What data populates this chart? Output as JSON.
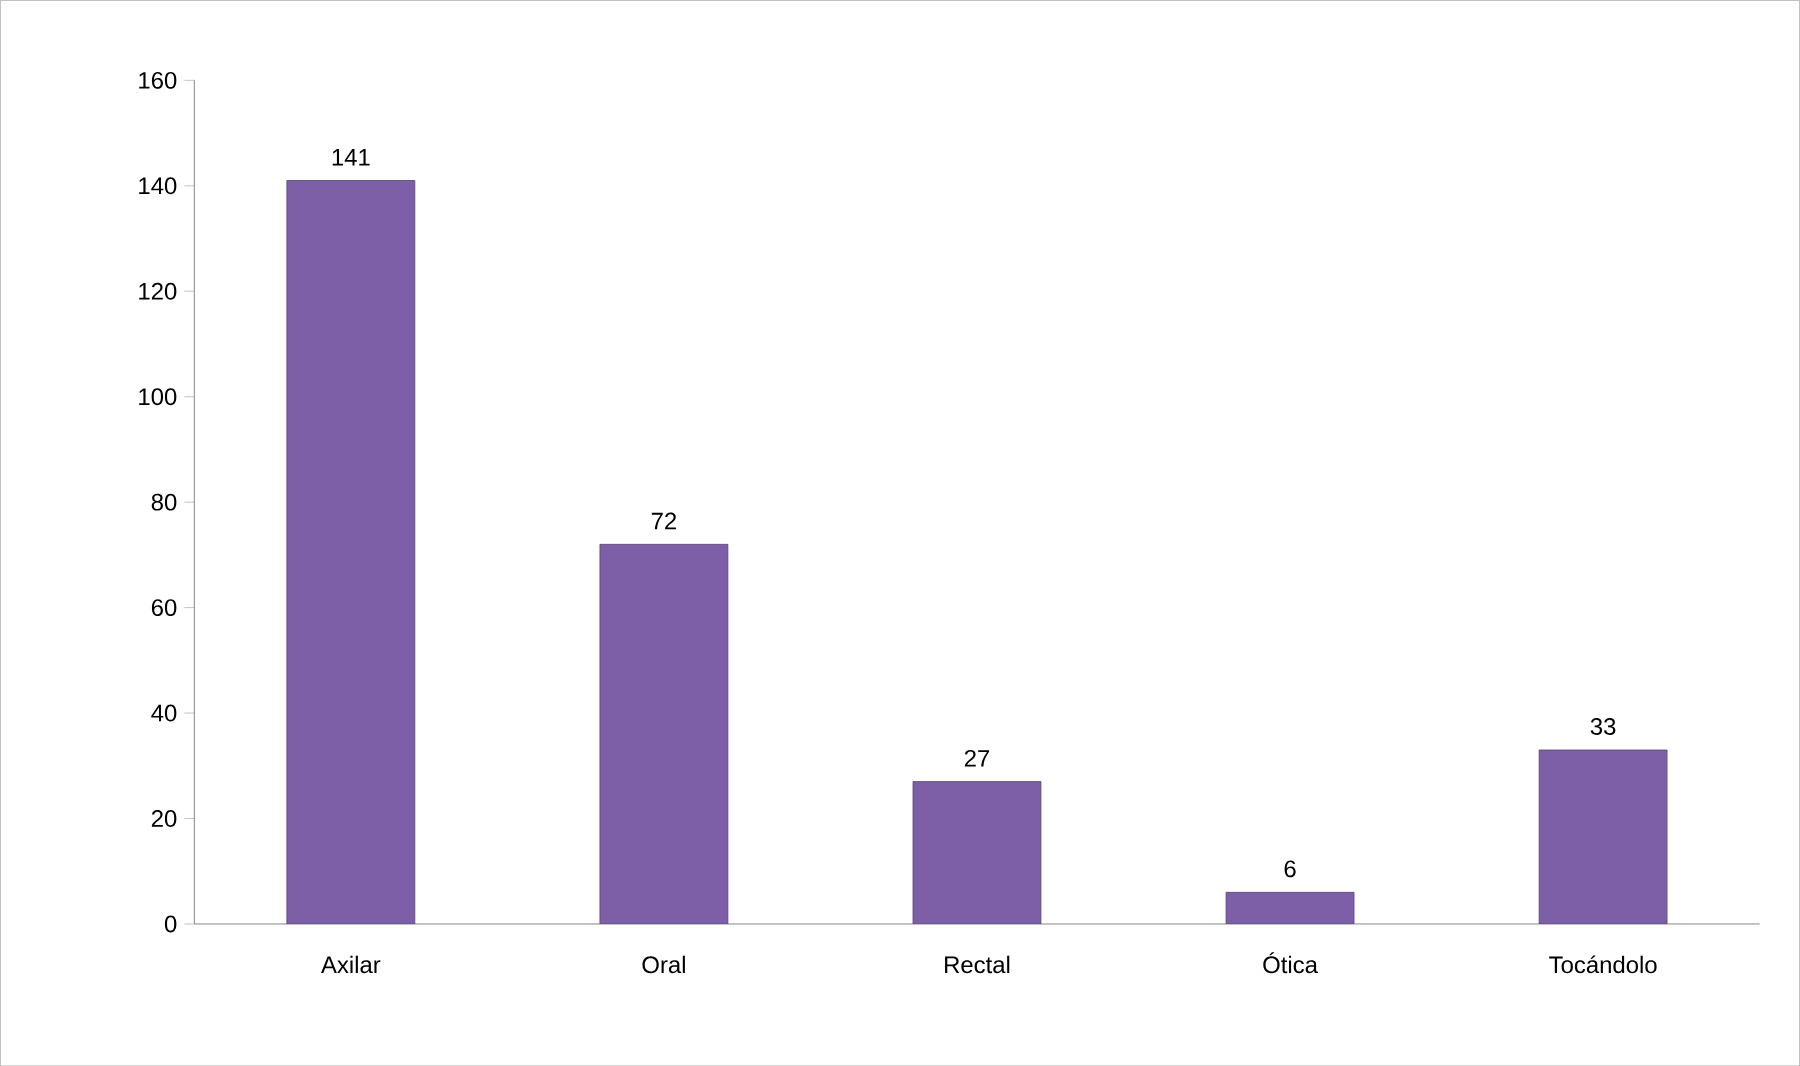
{
  "chart_data": {
    "type": "bar",
    "categories": [
      "Axilar",
      "Oral",
      "Rectal",
      "Ótica",
      "Tocándolo"
    ],
    "values": [
      141,
      72,
      27,
      6,
      33
    ],
    "color": "#7d5fa8",
    "ylim": [
      0,
      160
    ],
    "yticks": [
      0,
      20,
      40,
      60,
      80,
      100,
      120,
      140,
      160
    ],
    "data_labels": true
  }
}
